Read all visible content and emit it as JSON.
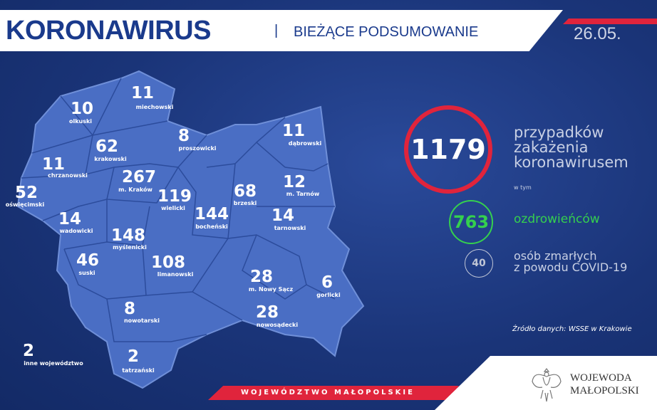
{
  "header": {
    "title": "KORONAWIRUS",
    "separator": "|",
    "subtitle": "BIEŻĄCE PODSUMOWANIE",
    "date": "26.05."
  },
  "colors": {
    "brand_blue": "#1a3a8c",
    "accent_red": "#e0243c",
    "recovered_green": "#35d04e",
    "map_fill": "#4a6ec4"
  },
  "districts": [
    {
      "count": "11",
      "name": "miechowski"
    },
    {
      "count": "10",
      "name": "olkuski"
    },
    {
      "count": "62",
      "name": "krakowski"
    },
    {
      "count": "8",
      "name": "proszowicki"
    },
    {
      "count": "11",
      "name": "dąbrowski"
    },
    {
      "count": "11",
      "name": "chrzanowski"
    },
    {
      "count": "267",
      "name": "m. Kraków"
    },
    {
      "count": "119",
      "name": "wielicki"
    },
    {
      "count": "68",
      "name": "brzeski"
    },
    {
      "count": "12",
      "name": "m. Tarnów"
    },
    {
      "count": "52",
      "name": "oświęcimski"
    },
    {
      "count": "144",
      "name": "bocheński"
    },
    {
      "count": "14",
      "name": "tarnowski"
    },
    {
      "count": "14",
      "name": "wadowicki"
    },
    {
      "count": "148",
      "name": "myślenicki"
    },
    {
      "count": "46",
      "name": "suski"
    },
    {
      "count": "108",
      "name": "limanowski"
    },
    {
      "count": "28",
      "name": "m. Nowy Sącz"
    },
    {
      "count": "6",
      "name": "gorlicki"
    },
    {
      "count": "8",
      "name": "nowotarski"
    },
    {
      "count": "28",
      "name": "nowosądecki"
    },
    {
      "count": "2",
      "name": "inne województwo"
    },
    {
      "count": "2",
      "name": "tatrzański"
    }
  ],
  "summary": {
    "total": "1179",
    "total_label": [
      "przypadków",
      "zakażenia",
      "koronawirusem"
    ],
    "including": "w tym",
    "recovered": "763",
    "recovered_label": "ozdrowieńców",
    "deaths": "40",
    "deaths_label": [
      "osób zmarłych",
      "z powodu COVID-19"
    ],
    "source": "Źródło danych: WSSE w Krakowie"
  },
  "footer": {
    "region": "WOJEWÓDZTWO MAŁOPOLSKIE",
    "logo_text": [
      "WOJEWODA",
      "MAŁOPOLSKI"
    ],
    "logo_icon": "white-eagle-emblem"
  }
}
